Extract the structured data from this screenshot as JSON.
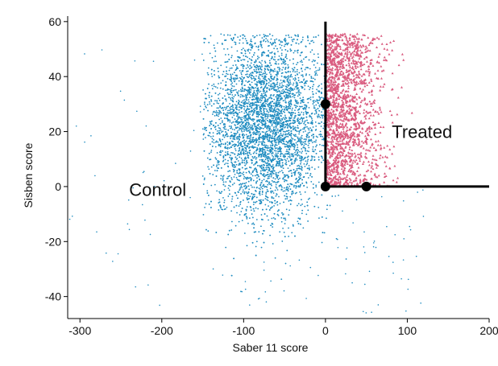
{
  "chart_data": {
    "type": "scatter",
    "xlabel": "Saber 11 score",
    "ylabel": "Sisben score",
    "xlim": [
      -315,
      200
    ],
    "ylim": [
      -48,
      62
    ],
    "x_ticks": [
      -300,
      -200,
      -100,
      0,
      100,
      200
    ],
    "y_ticks": [
      -40,
      -20,
      0,
      20,
      40,
      60
    ],
    "grid": false,
    "colors": {
      "control": "#1f8cc0",
      "treated": "#d95a7e",
      "lines": "#000000"
    },
    "series": [
      {
        "name": "Control",
        "marker": "dot",
        "color": "#1f8cc0",
        "distribution": {
          "x_range": [
            -315,
            50
          ],
          "y_range": [
            -46,
            56
          ],
          "dense_x_range": [
            -150,
            0
          ],
          "dense_y_range": [
            -20,
            55
          ]
        }
      },
      {
        "name": "Treated",
        "marker": "triangle",
        "color": "#d95a7e",
        "distribution": {
          "x_range": [
            0,
            130
          ],
          "y_range": [
            0,
            56
          ],
          "dense_x_range": [
            0,
            60
          ],
          "dense_y_range": [
            0,
            55
          ]
        }
      }
    ],
    "cutoff_lines": [
      {
        "from": [
          0,
          60
        ],
        "to": [
          0,
          0
        ]
      },
      {
        "from": [
          0,
          0
        ],
        "to": [
          200,
          0
        ]
      }
    ],
    "key_points": [
      {
        "x": 0,
        "y": 30
      },
      {
        "x": 0,
        "y": 0
      },
      {
        "x": 50,
        "y": 0
      }
    ],
    "annotations": [
      {
        "text": "Control",
        "x": -205,
        "y": -1
      },
      {
        "text": "Treated",
        "x": 118,
        "y": 20
      }
    ]
  }
}
